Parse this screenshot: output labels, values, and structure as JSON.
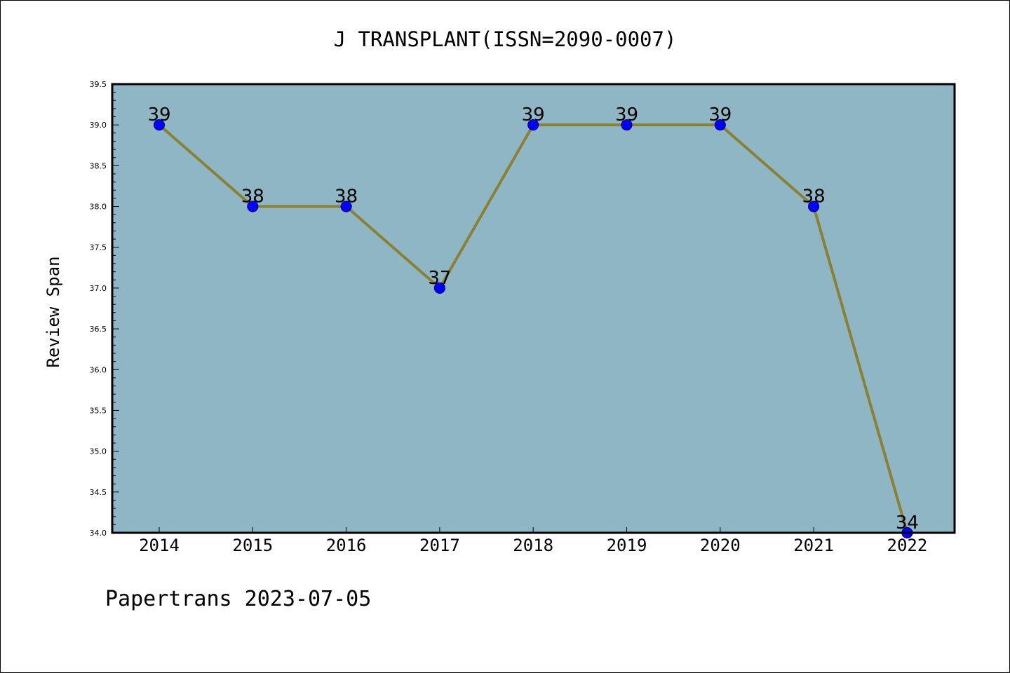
{
  "chart_data": {
    "type": "line",
    "title": "J TRANSPLANT(ISSN=2090-0007)",
    "xlabel": "",
    "ylabel": "Review Span",
    "categories": [
      "2014",
      "2015",
      "2016",
      "2017",
      "2018",
      "2019",
      "2020",
      "2021",
      "2022"
    ],
    "series": [
      {
        "values": [
          39,
          38,
          38,
          37,
          39,
          39,
          39,
          38,
          34
        ]
      }
    ],
    "data_labels": [
      "39",
      "38",
      "38",
      "37",
      "39",
      "39",
      "39",
      "38",
      "34"
    ],
    "ylim": [
      34.0,
      39.5
    ],
    "y_ticks": [
      "34.0",
      "34.5",
      "35.0",
      "35.5",
      "36.0",
      "36.5",
      "37.0",
      "37.5",
      "38.0",
      "38.5",
      "39.0",
      "39.5"
    ],
    "grid": false,
    "colors": {
      "plot_background": "#8fb6c4",
      "line": "#8b8135",
      "marker_fill": "#0000ff",
      "marker_edge": "#000080"
    }
  },
  "footer": {
    "text": "Papertrans 2023-07-05"
  }
}
